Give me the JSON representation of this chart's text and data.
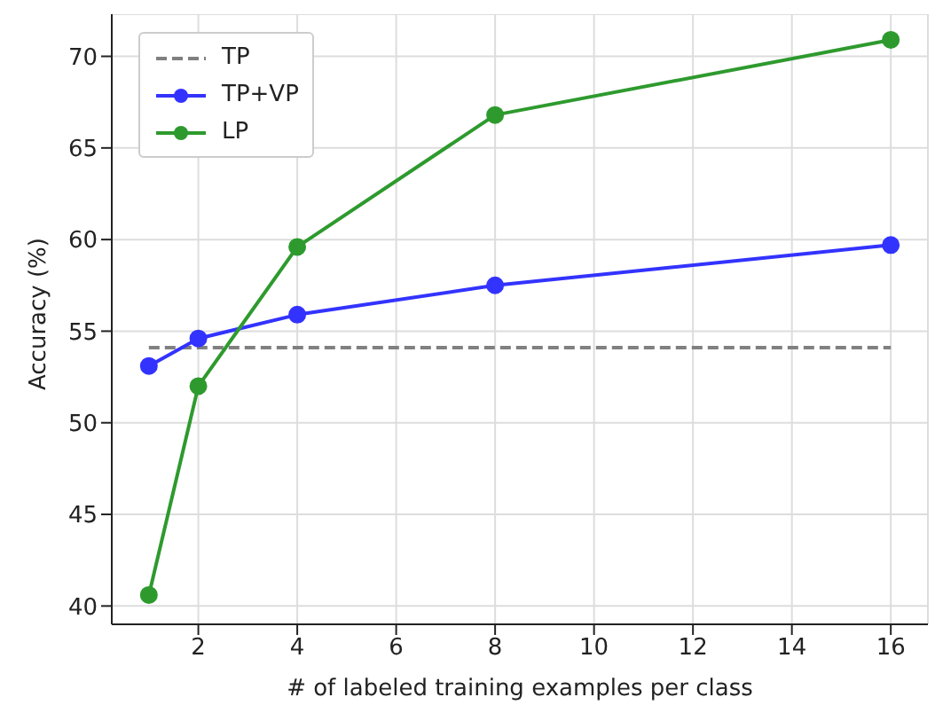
{
  "chart_data": {
    "type": "line",
    "xlabel": "# of labeled training examples per class",
    "ylabel": "Accuracy (%)",
    "x": [
      1,
      2,
      4,
      8,
      16
    ],
    "series": [
      {
        "name": "TP",
        "color": "#808080",
        "values": [
          54.1,
          54.1,
          54.1,
          54.1,
          54.1
        ],
        "marker": "none",
        "line_style": "dashed"
      },
      {
        "name": "TP+VP",
        "color": "#3333ff",
        "values": [
          53.1,
          54.6,
          55.9,
          57.5,
          59.7
        ],
        "marker": "circle",
        "line_style": "solid"
      },
      {
        "name": "LP",
        "color": "#2e9a2e",
        "values": [
          40.6,
          52.0,
          59.6,
          66.8,
          70.9
        ],
        "marker": "circle",
        "line_style": "solid"
      }
    ],
    "xlim": [
      0.25,
      16.75
    ],
    "xticks": [
      2,
      4,
      6,
      8,
      10,
      12,
      14,
      16
    ],
    "ylim": [
      39,
      72.3
    ],
    "yticks": [
      40,
      45,
      50,
      55,
      60,
      65,
      70
    ],
    "grid": true,
    "legend": "top left"
  }
}
